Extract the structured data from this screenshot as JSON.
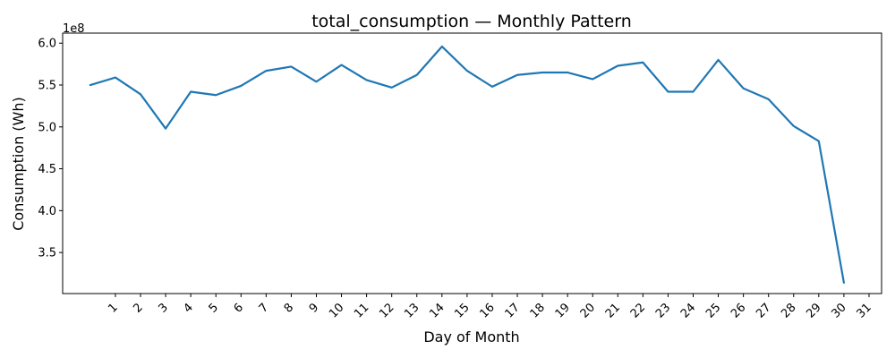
{
  "chart_data": {
    "type": "line",
    "title": "total_consumption — Monthly Pattern",
    "xlabel": "Day of Month",
    "ylabel": "Consumption (Wh)",
    "y_multiplier": "1e8",
    "x_ticks": [
      "1",
      "2",
      "3",
      "4",
      "5",
      "6",
      "7",
      "8",
      "9",
      "10",
      "11",
      "12",
      "13",
      "14",
      "15",
      "16",
      "17",
      "18",
      "19",
      "20",
      "21",
      "22",
      "23",
      "24",
      "25",
      "26",
      "27",
      "28",
      "29",
      "30",
      "31"
    ],
    "y_ticks": [
      "3.5",
      "4.0",
      "4.5",
      "5.0",
      "5.5",
      "6.0"
    ],
    "xlim": [
      -1.1,
      31.5
    ],
    "ylim": [
      3.01,
      6.12
    ],
    "grid": false,
    "series": [
      {
        "color": "#1f77b4",
        "x": [
          0,
          1,
          2,
          3,
          4,
          5,
          6,
          7,
          8,
          9,
          10,
          11,
          12,
          13,
          14,
          15,
          16,
          17,
          18,
          19,
          20,
          21,
          22,
          23,
          24,
          25,
          26,
          27,
          28,
          29,
          30
        ],
        "values": [
          5.5,
          5.59,
          5.39,
          4.98,
          5.42,
          5.38,
          5.49,
          5.67,
          5.72,
          5.54,
          5.74,
          5.56,
          5.47,
          5.62,
          5.96,
          5.67,
          5.48,
          5.62,
          5.65,
          5.65,
          5.57,
          5.73,
          5.77,
          5.42,
          5.42,
          5.8,
          5.46,
          5.33,
          5.01,
          4.83,
          3.14
        ]
      }
    ]
  }
}
